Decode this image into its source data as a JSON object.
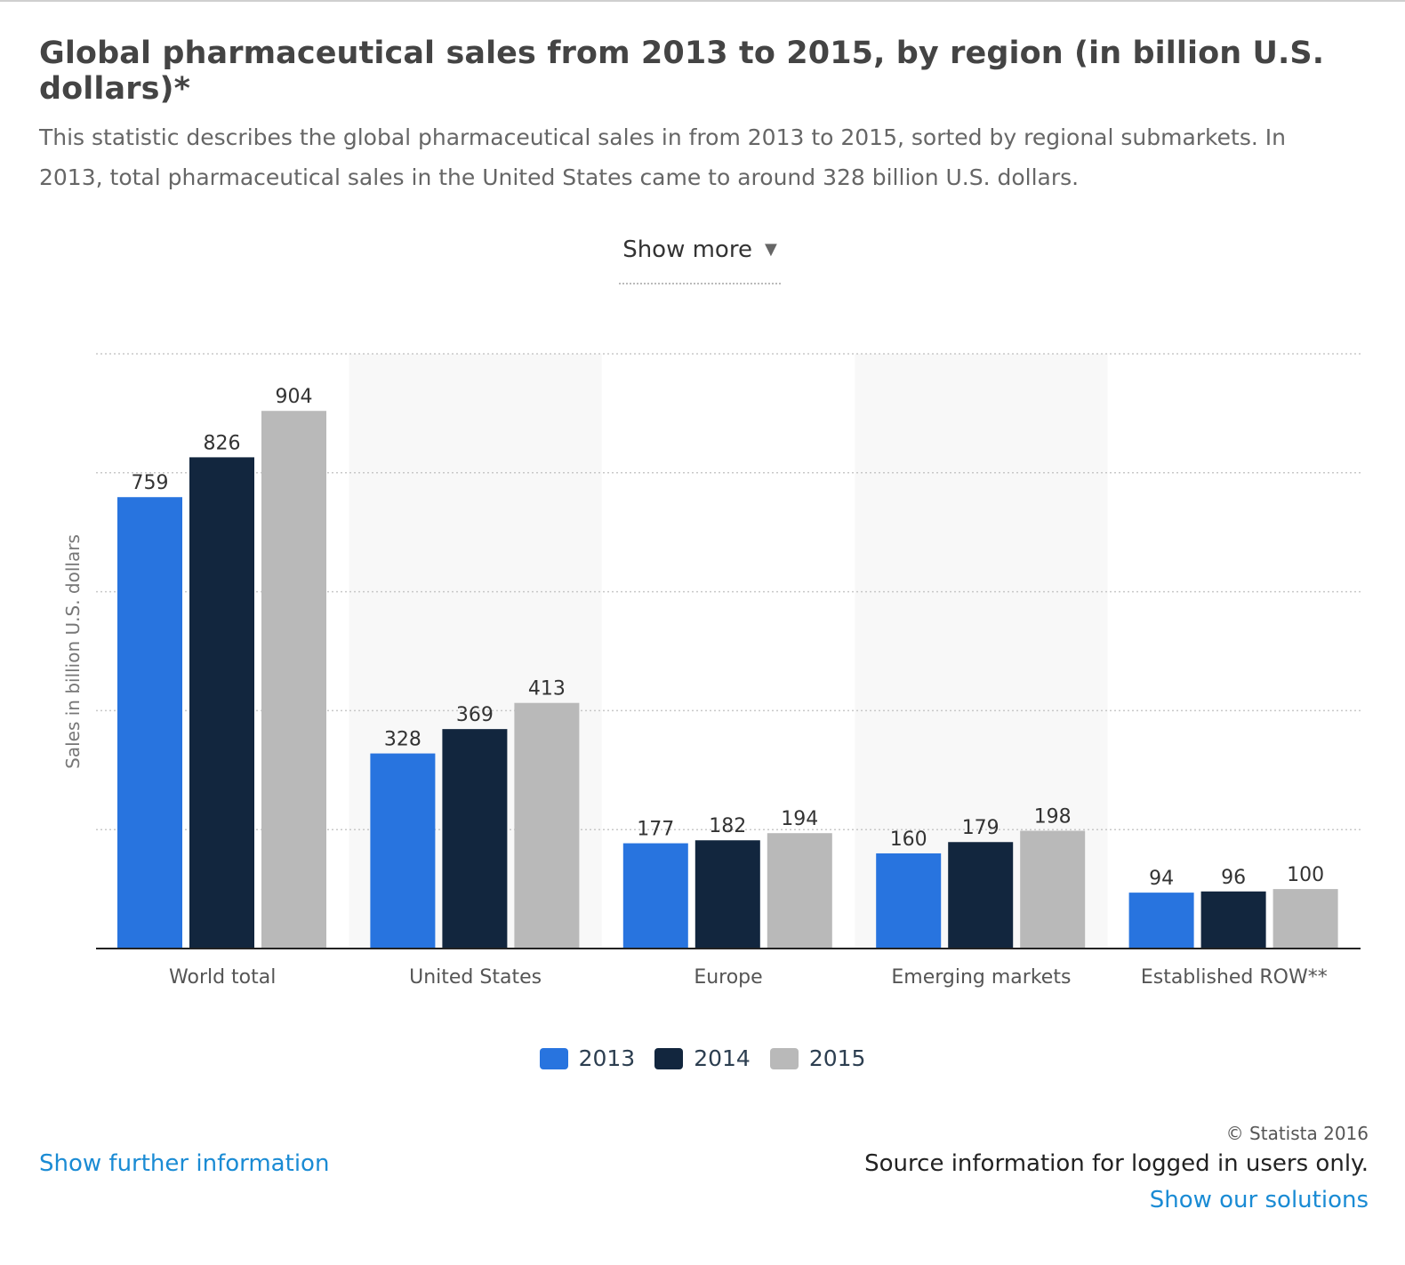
{
  "header": {
    "title": "Global pharmaceutical sales from 2013 to 2015, by region (in billion U.S. dollars)*",
    "description": "This statistic describes the global pharmaceutical sales in from 2013 to 2015, sorted by regional submarkets. In 2013, total pharmaceutical sales in the United States came to around 328 billion U.S. dollars.",
    "show_more_label": "Show more",
    "caret_icon": "triangle-down-icon"
  },
  "chart_data": {
    "type": "bar",
    "title": "",
    "xlabel": "",
    "ylabel": "Sales in billion U.S. dollars",
    "ylim": [
      0,
      1000
    ],
    "grid": true,
    "legend_position": "bottom-center",
    "categories": [
      "World total",
      "United States",
      "Europe",
      "Emerging markets",
      "Established ROW**"
    ],
    "series": [
      {
        "name": "2013",
        "color": "#2874df",
        "values": [
          759,
          328,
          177,
          160,
          94
        ]
      },
      {
        "name": "2014",
        "color": "#12263e",
        "values": [
          826,
          369,
          182,
          179,
          96
        ]
      },
      {
        "name": "2015",
        "color": "#b9b9b9",
        "values": [
          904,
          413,
          194,
          198,
          100
        ]
      }
    ],
    "data_labels": true
  },
  "footer": {
    "copyright": "© Statista 2016",
    "show_further": "Show further information",
    "source_info": "Source information for logged in users only.",
    "show_solutions": "Show our solutions"
  }
}
